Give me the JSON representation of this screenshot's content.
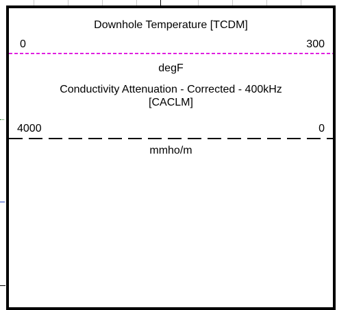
{
  "tracks": [
    {
      "title": "Downhole Temperature [TCDM]",
      "scale_left": "0",
      "scale_right": "300",
      "unit": "degF",
      "line_color": "#e020e0",
      "line_style": "dashed-fine"
    },
    {
      "title_line1": "Conductivity Attenuation - Corrected - 400kHz",
      "title_line2": "[CACLM]",
      "scale_left": "4000",
      "scale_right": "0",
      "unit": "mmho/m",
      "line_color": "#000000",
      "line_style": "dashed-long"
    }
  ],
  "colors": {
    "panel_border": "#000000",
    "grid": "#c8c8c8",
    "left_green": "#2a8a2a",
    "left_blue": "#2040c0"
  }
}
